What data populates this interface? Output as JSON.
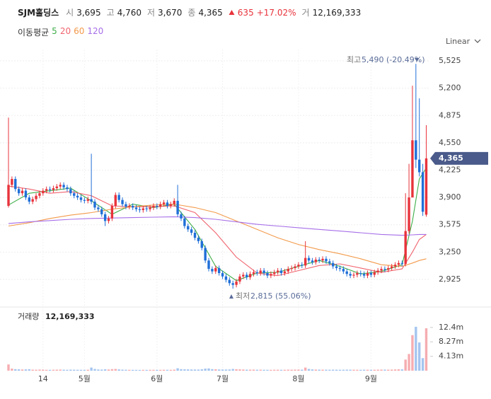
{
  "chart_data": {
    "type": "candlestick",
    "title": "SJM홀딩스",
    "header": {
      "open_label": "시",
      "open": "3,695",
      "high_label": "고",
      "high": "4,760",
      "low_label": "저",
      "low": "3,670",
      "close_label": "종",
      "close": "4,365",
      "change": "635",
      "change_pct": "+17.02%",
      "volume_label": "거",
      "volume": "12,169,333"
    },
    "ma_title": "이동평균",
    "scale_mode": "Linear",
    "last_price_label": "4,365",
    "max_annotation": {
      "label": "최고",
      "text": "5,490 (-20.49%)"
    },
    "min_annotation": {
      "label": "최저",
      "text": "2,815 (55.06%)"
    },
    "up_color": "#e8333c",
    "down_color": "#1f6fd8",
    "open": [
      3800,
      4050,
      4120,
      4000,
      3950,
      3980,
      3900,
      3850,
      3880,
      3920,
      3950,
      3980,
      4000,
      3990,
      4010,
      4030,
      4050,
      4020,
      4000,
      3950,
      3920,
      3900,
      3870,
      3860,
      3880,
      3850,
      3780,
      3760,
      3700,
      3620,
      3650,
      3800,
      3930,
      3870,
      3820,
      3790,
      3800,
      3780,
      3760,
      3750,
      3770,
      3760,
      3780,
      3800,
      3790,
      3820,
      3840,
      3800,
      3820,
      3860,
      3700,
      3650,
      3560,
      3520,
      3480,
      3420,
      3380,
      3300,
      3150,
      3050,
      3020,
      3060,
      3000,
      2960,
      2920,
      2880,
      2860,
      2900,
      2960,
      2980,
      2950,
      2990,
      3010,
      3000,
      3030,
      3000,
      2970,
      2990,
      3010,
      3030,
      3000,
      3020,
      3050,
      3060,
      3080,
      3100,
      3090,
      3180,
      3150,
      3130,
      3160,
      3150,
      3170,
      3140,
      3120,
      3080,
      3060,
      3050,
      3020,
      2990,
      2970,
      2980,
      3000,
      2990,
      2970,
      3000,
      2980,
      3010,
      3030,
      3050,
      3040,
      3060,
      3080,
      3100,
      3120,
      3110,
      3500,
      3900,
      4580,
      4350,
      4200,
      3695
    ],
    "high": [
      4850,
      4150,
      4150,
      4030,
      4010,
      4010,
      3930,
      3910,
      3950,
      3980,
      4010,
      4030,
      4030,
      4040,
      4060,
      4080,
      4080,
      4050,
      4030,
      3980,
      3950,
      3930,
      3900,
      3910,
      4420,
      3880,
      3810,
      3790,
      3730,
      3680,
      3830,
      3960,
      3960,
      3900,
      3850,
      3830,
      3830,
      3810,
      3790,
      3800,
      3800,
      3810,
      3830,
      3830,
      3850,
      3870,
      3870,
      3850,
      3890,
      4050,
      3730,
      3680,
      3590,
      3550,
      3510,
      3450,
      3410,
      3330,
      3180,
      3080,
      3090,
      3090,
      3030,
      2990,
      2950,
      2910,
      2930,
      2990,
      3010,
      3010,
      3020,
      3040,
      3040,
      3060,
      3060,
      3030,
      3020,
      3040,
      3060,
      3060,
      3050,
      3080,
      3090,
      3110,
      3130,
      3130,
      3380,
      3210,
      3180,
      3190,
      3190,
      3200,
      3200,
      3170,
      3150,
      3110,
      3090,
      3080,
      3050,
      3020,
      3010,
      3030,
      3030,
      3020,
      3030,
      3030,
      3040,
      3060,
      3080,
      3080,
      3090,
      3110,
      3130,
      3150,
      3150,
      3950,
      4300,
      5230,
      5490,
      5080,
      4300,
      4760
    ],
    "low": [
      3780,
      4020,
      3970,
      3920,
      3920,
      3870,
      3820,
      3820,
      3850,
      3890,
      3920,
      3950,
      3960,
      3960,
      3980,
      4000,
      3990,
      3970,
      3920,
      3890,
      3870,
      3840,
      3830,
      3830,
      3820,
      3750,
      3730,
      3670,
      3560,
      3590,
      3620,
      3770,
      3840,
      3790,
      3760,
      3760,
      3750,
      3730,
      3720,
      3720,
      3730,
      3730,
      3750,
      3760,
      3760,
      3790,
      3770,
      3770,
      3790,
      3670,
      3620,
      3530,
      3490,
      3450,
      3390,
      3350,
      3270,
      3120,
      3020,
      2990,
      2990,
      2970,
      2930,
      2890,
      2850,
      2815,
      2830,
      2870,
      2930,
      2920,
      2920,
      2960,
      2970,
      2970,
      2970,
      2940,
      2940,
      2960,
      2980,
      2970,
      2970,
      2990,
      3020,
      3030,
      3050,
      3060,
      3060,
      3120,
      3100,
      3100,
      3120,
      3120,
      3110,
      3090,
      3050,
      3030,
      3020,
      2990,
      2960,
      2940,
      2940,
      2950,
      2960,
      2940,
      2940,
      2950,
      2950,
      2980,
      3000,
      3010,
      3010,
      3030,
      3050,
      3070,
      3080,
      3080,
      3470,
      3900,
      4250,
      4150,
      3680,
      3670
    ],
    "close": [
      4050,
      4120,
      4000,
      3950,
      3980,
      3900,
      3850,
      3880,
      3920,
      3950,
      3980,
      4000,
      3990,
      4010,
      4030,
      4050,
      4020,
      4000,
      3950,
      3920,
      3900,
      3870,
      3860,
      3880,
      3850,
      3780,
      3760,
      3700,
      3620,
      3650,
      3800,
      3930,
      3870,
      3820,
      3790,
      3800,
      3780,
      3760,
      3750,
      3770,
      3760,
      3780,
      3800,
      3790,
      3820,
      3840,
      3800,
      3820,
      3860,
      3700,
      3650,
      3560,
      3520,
      3480,
      3420,
      3380,
      3300,
      3150,
      3050,
      3020,
      3060,
      3000,
      2960,
      2920,
      2880,
      2860,
      2900,
      2960,
      2980,
      2950,
      2990,
      3010,
      3000,
      3030,
      3000,
      2970,
      2990,
      3010,
      3030,
      3000,
      3020,
      3050,
      3060,
      3080,
      3100,
      3090,
      3180,
      3150,
      3130,
      3160,
      3150,
      3170,
      3140,
      3120,
      3080,
      3060,
      3050,
      3020,
      2990,
      2970,
      2980,
      3000,
      2990,
      2970,
      3000,
      2980,
      3010,
      3030,
      3050,
      3040,
      3060,
      3080,
      3100,
      3120,
      3110,
      3500,
      3900,
      4580,
      4350,
      4200,
      3730,
      4365
    ],
    "volume": [
      1800000,
      600000,
      450000,
      400000,
      350000,
      380000,
      420000,
      300000,
      280000,
      320000,
      300000,
      260000,
      250000,
      280000,
      300000,
      320000,
      290000,
      260000,
      300000,
      280000,
      270000,
      260000,
      250000,
      280000,
      900000,
      500000,
      350000,
      320000,
      400000,
      350000,
      450000,
      500000,
      380000,
      300000,
      280000,
      260000,
      250000,
      240000,
      230000,
      250000,
      240000,
      250000,
      260000,
      240000,
      250000,
      270000,
      260000,
      250000,
      300000,
      700000,
      450000,
      400000,
      380000,
      350000,
      340000,
      330000,
      400000,
      600000,
      650000,
      450000,
      400000,
      350000,
      330000,
      340000,
      360000,
      500000,
      420000,
      380000,
      350000,
      300000,
      300000,
      320000,
      280000,
      290000,
      270000,
      260000,
      250000,
      270000,
      280000,
      260000,
      270000,
      300000,
      290000,
      310000,
      320000,
      300000,
      900000,
      500000,
      380000,
      330000,
      310000,
      300000,
      290000,
      280000,
      300000,
      290000,
      270000,
      280000,
      300000,
      290000,
      280000,
      270000,
      260000,
      280000,
      270000,
      260000,
      280000,
      300000,
      320000,
      310000,
      300000,
      320000,
      350000,
      400000,
      380000,
      3200000,
      4800000,
      10200000,
      12600000,
      8100000,
      3600000,
      12169333
    ],
    "volume_title": "거래량",
    "volume_total": "12,169,333",
    "ma": [
      {
        "name": "5",
        "color": "#3fae49",
        "x": [
          0,
          6,
          12,
          18,
          24,
          30,
          36,
          42,
          48,
          54,
          60,
          66,
          72,
          78,
          84,
          90,
          96,
          102,
          108,
          114,
          117,
          119,
          121
        ],
        "values": [
          3810,
          3950,
          3980,
          4010,
          3860,
          3700,
          3820,
          3780,
          3820,
          3520,
          3080,
          2910,
          3000,
          3010,
          3080,
          3150,
          3080,
          2990,
          3020,
          3100,
          3620,
          4120,
          4250
        ]
      },
      {
        "name": "20",
        "color": "#f0646e",
        "x": [
          0,
          6,
          12,
          18,
          24,
          30,
          36,
          42,
          48,
          54,
          60,
          66,
          72,
          78,
          84,
          90,
          96,
          102,
          108,
          114,
          117,
          119,
          121
        ],
        "values": [
          4035,
          4000,
          3950,
          3970,
          3920,
          3800,
          3790,
          3790,
          3800,
          3720,
          3480,
          3190,
          3000,
          2970,
          3030,
          3090,
          3110,
          3060,
          3010,
          3050,
          3250,
          3400,
          3460
        ]
      },
      {
        "name": "60",
        "color": "#f39a4a",
        "x": [
          0,
          6,
          12,
          18,
          24,
          30,
          36,
          42,
          48,
          54,
          60,
          66,
          72,
          78,
          84,
          90,
          96,
          102,
          108,
          114,
          117,
          119,
          121
        ],
        "values": [
          3560,
          3600,
          3650,
          3690,
          3720,
          3760,
          3790,
          3810,
          3820,
          3780,
          3720,
          3620,
          3520,
          3420,
          3340,
          3280,
          3230,
          3170,
          3100,
          3080,
          3120,
          3150,
          3170
        ]
      },
      {
        "name": "120",
        "color": "#a66ee8",
        "x": [
          0,
          6,
          12,
          18,
          24,
          30,
          36,
          42,
          48,
          54,
          60,
          66,
          72,
          78,
          84,
          90,
          96,
          102,
          108,
          114,
          117,
          119,
          121
        ],
        "values": [
          3590,
          3610,
          3625,
          3640,
          3650,
          3655,
          3660,
          3665,
          3670,
          3660,
          3640,
          3610,
          3580,
          3560,
          3540,
          3520,
          3500,
          3480,
          3460,
          3450,
          3455,
          3460,
          3460
        ]
      }
    ],
    "x_labels": [
      "14",
      "5월",
      "6월",
      "7월",
      "8월",
      "9월"
    ],
    "x_label_index": [
      10,
      22,
      43,
      62,
      84,
      105
    ],
    "ylim": [
      2630,
      5660
    ],
    "yticks": [
      {
        "value": 2925,
        "label": "2,925"
      },
      {
        "value": 3250,
        "label": "3,250"
      },
      {
        "value": 3575,
        "label": "3,575"
      },
      {
        "value": 3900,
        "label": "3,900"
      },
      {
        "value": 4225,
        "label": "4,225"
      },
      {
        "value": 4550,
        "label": "4,550"
      },
      {
        "value": 4875,
        "label": "4,875"
      },
      {
        "value": 5200,
        "label": "5,200"
      },
      {
        "value": 5525,
        "label": "5,525"
      }
    ],
    "vlim": [
      0,
      14000000
    ],
    "vticks": [
      {
        "value": 4130000,
        "label": "4.13m"
      },
      {
        "value": 8270000,
        "label": "8.27m"
      },
      {
        "value": 12400000,
        "label": "12.4m"
      }
    ],
    "grid": true
  }
}
